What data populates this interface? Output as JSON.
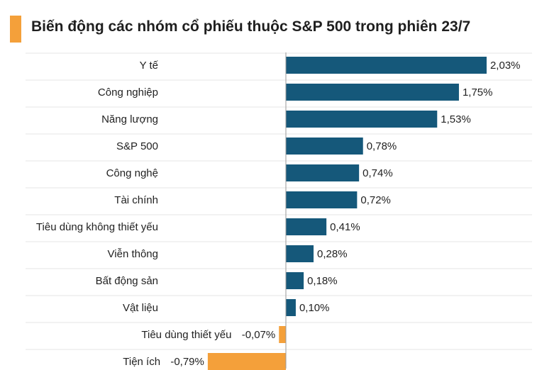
{
  "header": {
    "title": "Biến động các nhóm cổ phiếu thuộc S&P 500 trong phiên 23/7"
  },
  "colors": {
    "positive": "#15587a",
    "negative": "#f4a03a",
    "grid": "#e6e6e6",
    "axis": "#9a9a9a",
    "title_accent": "#f4a03a"
  },
  "chart_data": {
    "type": "bar",
    "orientation": "horizontal",
    "title": "Biến động các nhóm cổ phiếu thuộc S&P 500 trong phiên 23/7",
    "categories": [
      "Y tế",
      "Công nghiệp",
      "Năng lượng",
      "S&P 500",
      "Công nghệ",
      "Tài chính",
      "Tiêu dùng không thiết yếu",
      "Viễn thông",
      "Bất động sản",
      "Vật liệu",
      "Tiêu dùng thiết yếu",
      "Tiện ích"
    ],
    "values": [
      2.03,
      1.75,
      1.53,
      0.78,
      0.74,
      0.72,
      0.41,
      0.28,
      0.18,
      0.1,
      -0.07,
      -0.79
    ],
    "value_labels": [
      "2,03%",
      "1,75%",
      "1,53%",
      "0,78%",
      "0,74%",
      "0,72%",
      "0,41%",
      "0,28%",
      "0,18%",
      "0,10%",
      "-0,07%",
      "-0,79%"
    ],
    "unit": "%",
    "xlim": [
      -0.85,
      2.35
    ],
    "grid": true,
    "legend": "none"
  }
}
